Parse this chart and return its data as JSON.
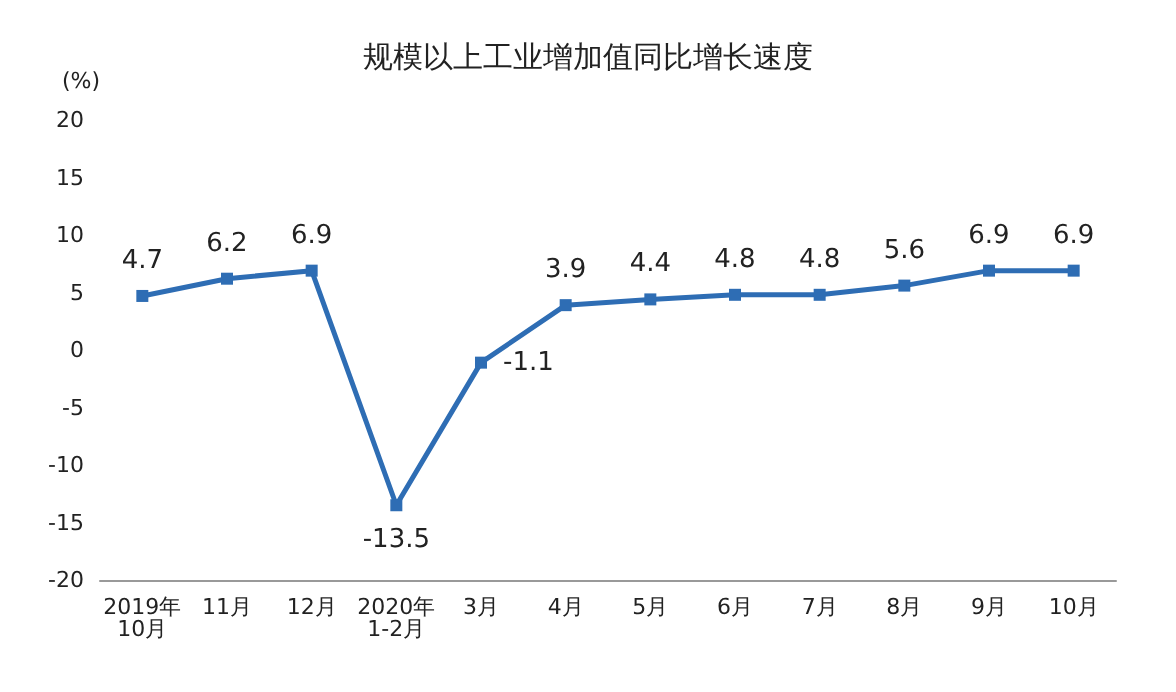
{
  "chart_data": {
    "type": "line",
    "title": "规模以上工业增加值同比增长速度",
    "ylabel": "(%)",
    "categories": [
      "2019年\n10月",
      "11月",
      "12月",
      "2020年\n1-2月",
      "3月",
      "4月",
      "5月",
      "6月",
      "7月",
      "8月",
      "9月",
      "10月"
    ],
    "series": [
      {
        "color": "#2e6db4",
        "values": [
          4.7,
          6.2,
          6.9,
          -13.5,
          -1.1,
          3.9,
          4.4,
          4.8,
          4.8,
          5.6,
          6.9,
          6.9
        ]
      }
    ],
    "ylim": [
      -20,
      20
    ],
    "yticks": [
      -20,
      -15,
      -10,
      -5,
      0,
      5,
      10,
      15,
      20
    ],
    "grid": false,
    "marker": "square",
    "line_style": "solid",
    "data_labels": true
  }
}
